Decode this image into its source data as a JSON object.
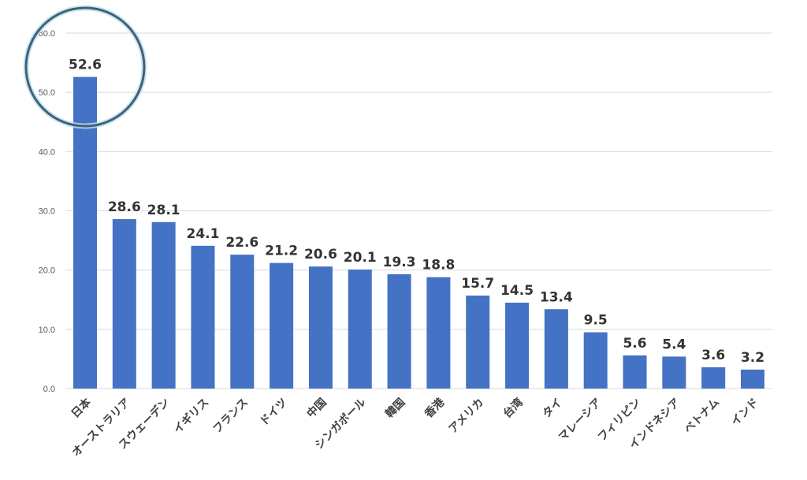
{
  "chart_data": {
    "type": "bar",
    "title": "",
    "xlabel": "",
    "ylabel": "",
    "ylim": [
      0,
      60
    ],
    "yticks": [
      "0.0",
      "10.0",
      "20.0",
      "30.0",
      "40.0",
      "50.0",
      "60.0"
    ],
    "grid": true,
    "categories": [
      "日本",
      "オーストラリア",
      "スウェーデン",
      "イギリス",
      "フランス",
      "ドイツ",
      "中国",
      "シンガポール",
      "韓国",
      "香港",
      "アメリカ",
      "台湾",
      "タイ",
      "マレーシア",
      "フィリピン",
      "インドネシア",
      "ベトナム",
      "インド"
    ],
    "values": [
      52.6,
      28.6,
      28.1,
      24.1,
      22.6,
      21.2,
      20.6,
      20.1,
      19.3,
      18.8,
      15.7,
      14.5,
      13.4,
      9.5,
      5.6,
      5.4,
      3.6,
      3.2
    ],
    "data_labels": [
      "52.6",
      "28.6",
      "28.1",
      "24.1",
      "22.6",
      "21.2",
      "20.6",
      "20.1",
      "19.3",
      "18.8",
      "15.7",
      "14.5",
      "13.4",
      "9.5",
      "5.6",
      "5.4",
      "3.6",
      "3.2"
    ],
    "highlight_index": 0,
    "colors": {
      "bar": "#4472C4",
      "grid": "#D9D9D9",
      "highlight": "#3E6277"
    }
  }
}
